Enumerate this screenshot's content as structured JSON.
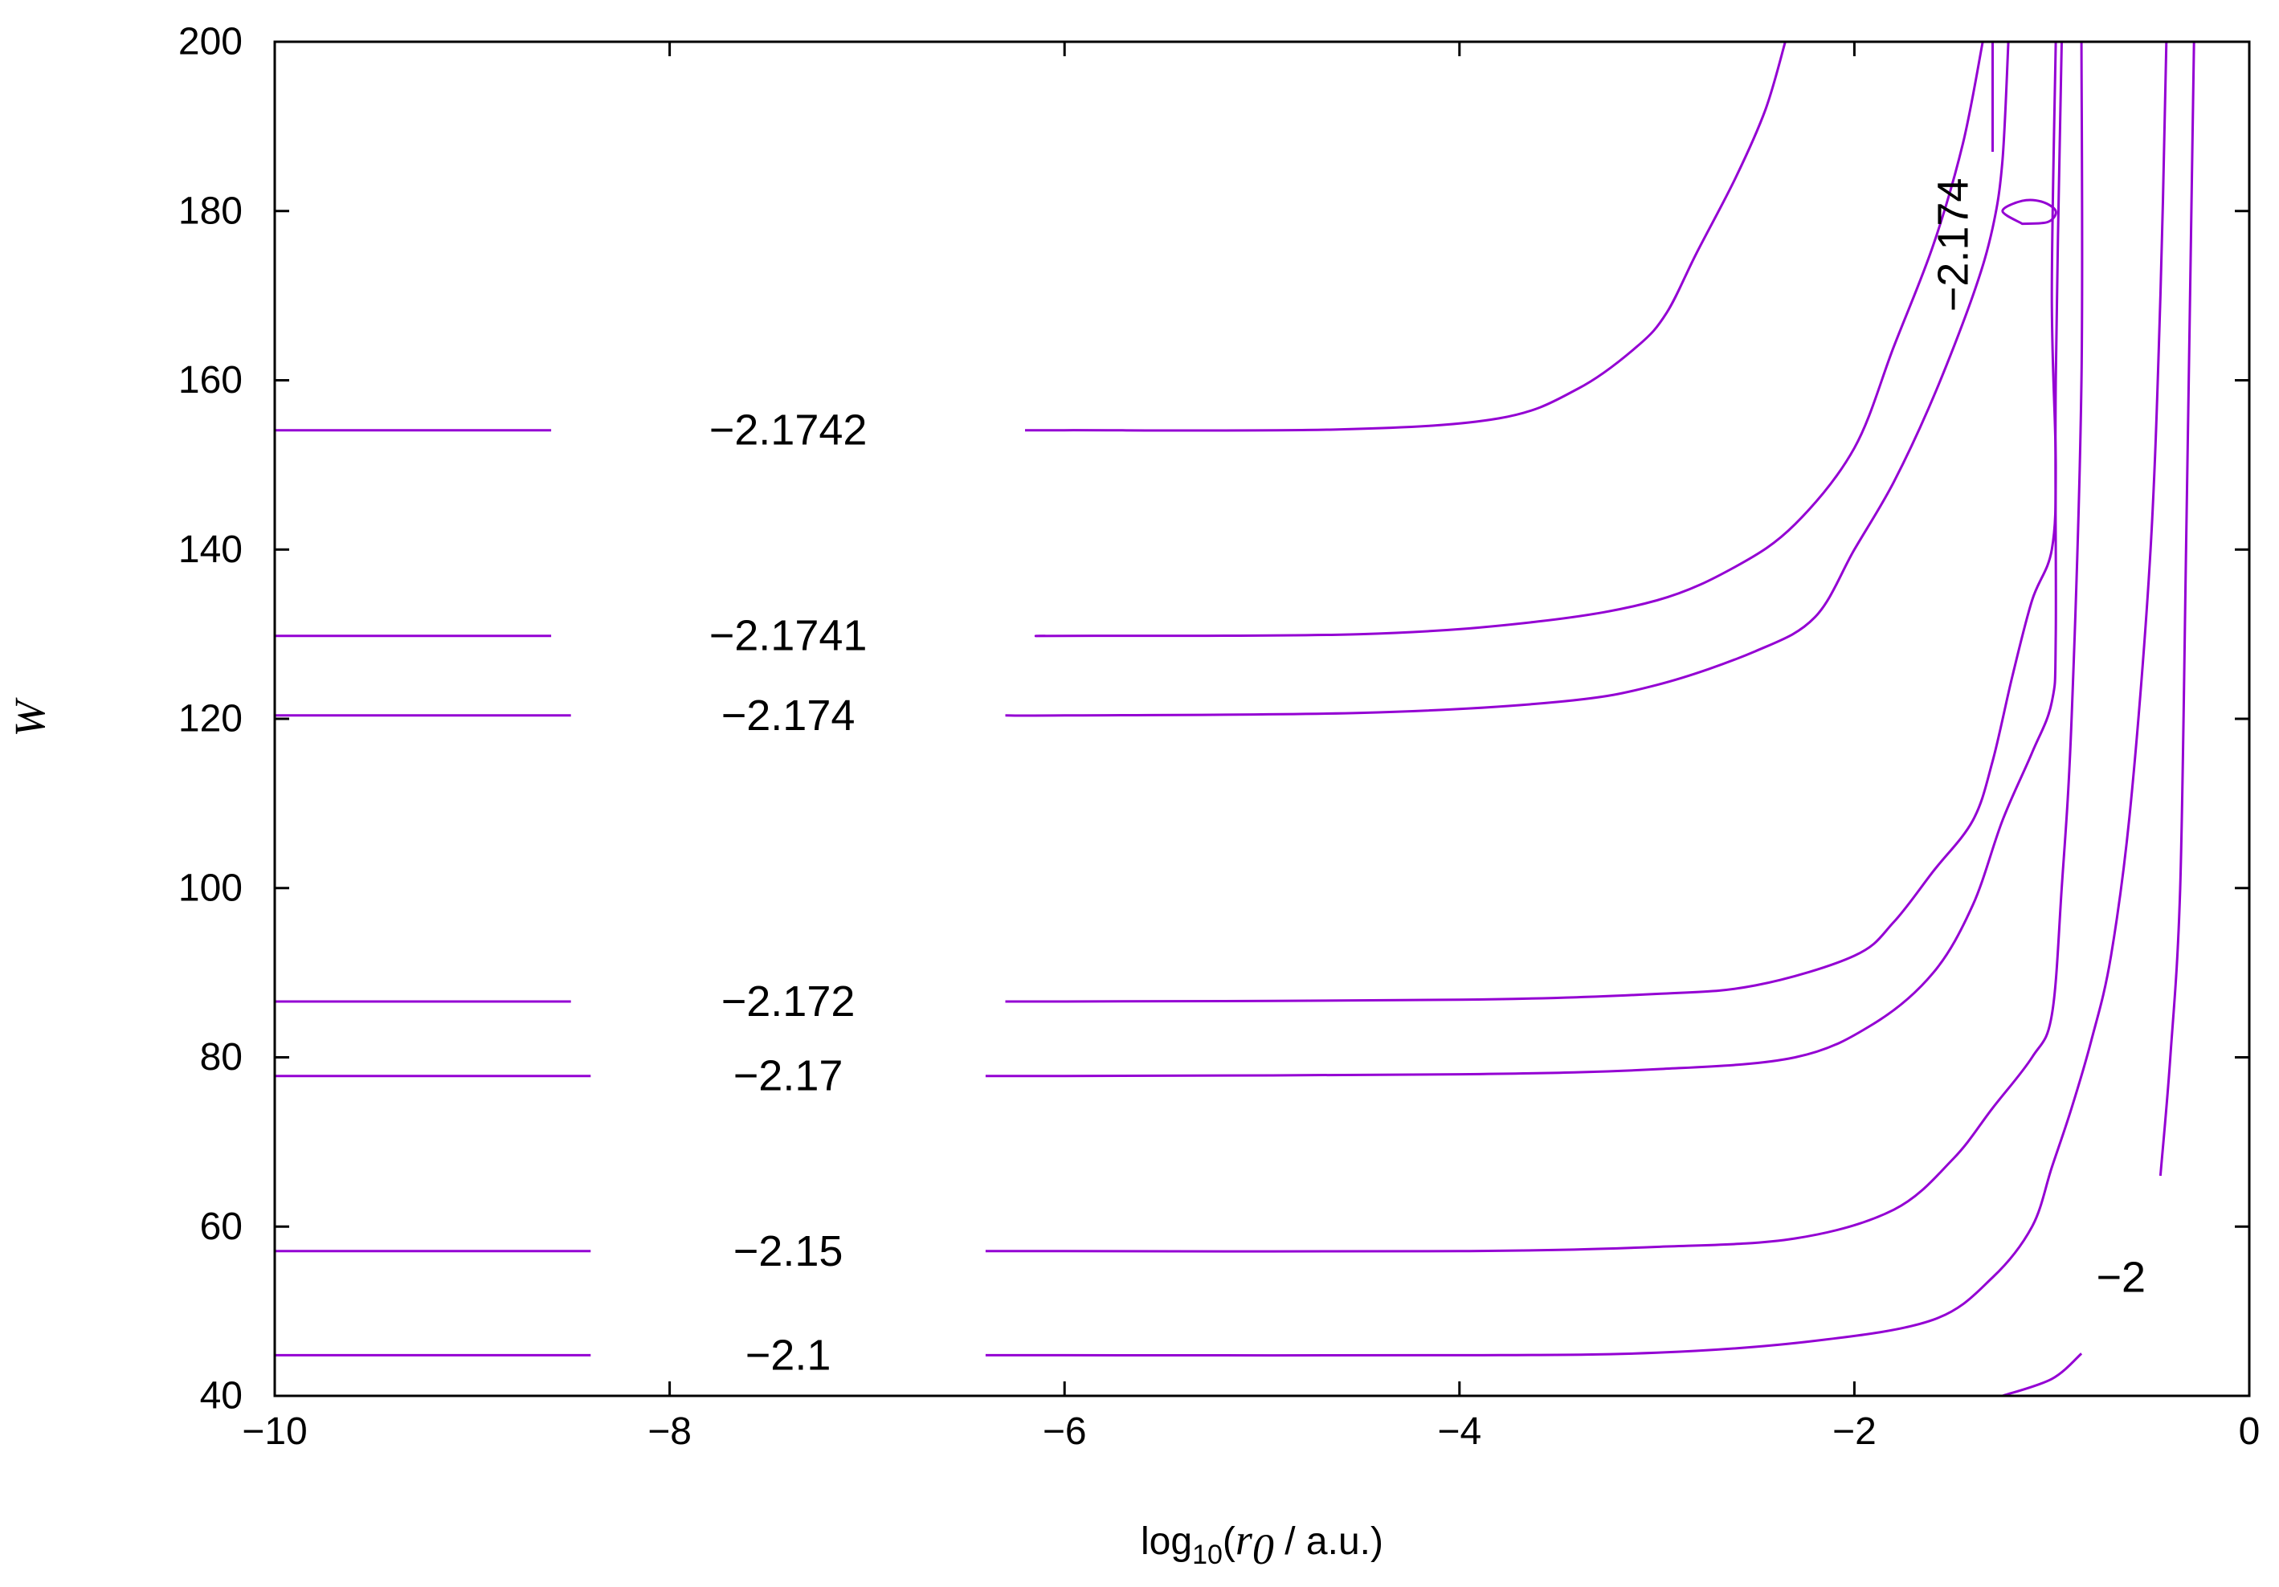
{
  "chart_data": {
    "type": "line",
    "title": "",
    "xlabel": {
      "prefix": "log",
      "sub": "10",
      "open": "(",
      "var": "r",
      "var_sub": "0",
      "rest": " / a.u.)"
    },
    "ylabel": "W",
    "xlim": [
      -10,
      0
    ],
    "ylim": [
      40,
      200
    ],
    "xticks": [
      -10,
      -8,
      -6,
      -4,
      -2,
      0
    ],
    "xtick_labels": [
      "−10",
      "−8",
      "−6",
      "−4",
      "−2",
      "0"
    ],
    "yticks": [
      40,
      60,
      80,
      100,
      120,
      140,
      160,
      180,
      200
    ],
    "ytick_labels": [
      "40",
      "60",
      "80",
      "100",
      "120",
      "140",
      "160",
      "180",
      "200"
    ],
    "line_color": "#9400d3",
    "contours": [
      {
        "label": "−2.1742",
        "label_at": [
          -7.4,
          154.1
        ],
        "label_rot": 0,
        "gap": [
          -8.6,
          -6.2
        ],
        "points": [
          [
            -10,
            154.1
          ],
          [
            -8,
            154.1
          ],
          [
            -6,
            154.1
          ],
          [
            -4.6,
            154.2
          ],
          [
            -3.8,
            155.5
          ],
          [
            -3.4,
            159
          ],
          [
            -3.1,
            164
          ],
          [
            -2.95,
            168
          ],
          [
            -2.8,
            175
          ],
          [
            -2.6,
            184
          ],
          [
            -2.45,
            192
          ],
          [
            -2.35,
            200
          ]
        ]
      },
      {
        "label": "−2.1741",
        "label_at": [
          -7.4,
          129.8
        ],
        "label_rot": 0,
        "gap": [
          -8.6,
          -6.1
        ],
        "points": [
          [
            -10,
            129.8
          ],
          [
            -8,
            129.8
          ],
          [
            -6,
            129.8
          ],
          [
            -4.5,
            130
          ],
          [
            -3.6,
            131.5
          ],
          [
            -3.0,
            134
          ],
          [
            -2.6,
            138
          ],
          [
            -2.3,
            143
          ],
          [
            -2.0,
            152
          ],
          [
            -1.8,
            164
          ],
          [
            -1.6,
            176
          ],
          [
            -1.45,
            188
          ],
          [
            -1.35,
            200
          ]
        ]
      },
      {
        "label": "−2.174",
        "label_at": [
          -7.4,
          120.4
        ],
        "label_rot": 0,
        "gap": [
          -8.5,
          -6.3
        ],
        "points": [
          [
            -10,
            120.4
          ],
          [
            -8,
            120.4
          ],
          [
            -6,
            120.4
          ],
          [
            -4.5,
            120.7
          ],
          [
            -3.5,
            122
          ],
          [
            -3.0,
            124
          ],
          [
            -2.5,
            128
          ],
          [
            -2.2,
            132
          ],
          [
            -2.0,
            140
          ],
          [
            -1.8,
            148
          ],
          [
            -1.6,
            158
          ],
          [
            -1.4,
            170
          ],
          [
            -1.3,
            178
          ],
          [
            -1.25,
            186
          ],
          [
            -1.22,
            200
          ]
        ]
      },
      {
        "label": "−2.174",
        "label_at": [
          -1.5,
          176
        ],
        "label_rot": -90,
        "gap": [
          187,
          168
        ],
        "points": [
          [
            -1.3,
            200
          ],
          [
            -1.3,
            168
          ]
        ]
      },
      {
        "label": "",
        "closed": true,
        "points": [
          [
            -1.15,
            178.5
          ],
          [
            -1.02,
            178.7
          ],
          [
            -0.98,
            180
          ],
          [
            -1.05,
            181.1
          ],
          [
            -1.15,
            181.2
          ],
          [
            -1.25,
            180
          ],
          [
            -1.15,
            178.5
          ]
        ]
      },
      {
        "label": "−2.172",
        "label_at": [
          -7.4,
          86.6
        ],
        "label_rot": 0,
        "gap": [
          -8.5,
          -6.3
        ],
        "points": [
          [
            -10,
            86.6
          ],
          [
            -8,
            86.6
          ],
          [
            -6,
            86.6
          ],
          [
            -4,
            86.8
          ],
          [
            -3.0,
            87.5
          ],
          [
            -2.5,
            88.5
          ],
          [
            -2.0,
            92
          ],
          [
            -1.8,
            96
          ],
          [
            -1.6,
            102
          ],
          [
            -1.4,
            108
          ],
          [
            -1.3,
            115
          ],
          [
            -1.2,
            125
          ],
          [
            -1.1,
            134
          ],
          [
            -1.0,
            140
          ],
          [
            -0.98,
            150
          ],
          [
            -1.0,
            170
          ],
          [
            -0.98,
            200
          ]
        ]
      },
      {
        "label": "−2.17",
        "label_at": [
          -7.4,
          77.8
        ],
        "label_rot": 0,
        "gap": [
          -8.4,
          -6.4
        ],
        "points": [
          [
            -10,
            77.8
          ],
          [
            -8,
            77.8
          ],
          [
            -6,
            77.8
          ],
          [
            -4,
            78
          ],
          [
            -3.0,
            78.6
          ],
          [
            -2.3,
            80
          ],
          [
            -1.9,
            84
          ],
          [
            -1.6,
            90
          ],
          [
            -1.4,
            98
          ],
          [
            -1.25,
            108
          ],
          [
            -1.1,
            116
          ],
          [
            -1.0,
            122
          ],
          [
            -0.98,
            130
          ],
          [
            -0.98,
            160
          ],
          [
            -0.95,
            200
          ]
        ]
      },
      {
        "label": "−2.15",
        "label_at": [
          -7.4,
          57.1
        ],
        "label_rot": 0,
        "gap": [
          -8.4,
          -6.4
        ],
        "points": [
          [
            -10,
            57.1
          ],
          [
            -8,
            57.1
          ],
          [
            -6,
            57.1
          ],
          [
            -4,
            57.1
          ],
          [
            -3.0,
            57.6
          ],
          [
            -2.3,
            58.6
          ],
          [
            -1.8,
            62
          ],
          [
            -1.5,
            68
          ],
          [
            -1.3,
            74
          ],
          [
            -1.1,
            80
          ],
          [
            -1.0,
            85
          ],
          [
            -0.95,
            100
          ],
          [
            -0.9,
            120
          ],
          [
            -0.85,
            160
          ],
          [
            -0.85,
            200
          ]
        ]
      },
      {
        "label": "−2.1",
        "label_at": [
          -7.4,
          44.8
        ],
        "label_rot": 0,
        "gap": [
          -8.4,
          -6.4
        ],
        "points": [
          [
            -10,
            44.8
          ],
          [
            -8,
            44.8
          ],
          [
            -6,
            44.8
          ],
          [
            -4,
            44.8
          ],
          [
            -3.0,
            45.1
          ],
          [
            -2.2,
            46.5
          ],
          [
            -1.6,
            49
          ],
          [
            -1.3,
            54
          ],
          [
            -1.1,
            60
          ],
          [
            -1.0,
            67
          ],
          [
            -0.9,
            74
          ],
          [
            -0.8,
            82
          ],
          [
            -0.7,
            92
          ],
          [
            -0.6,
            110
          ],
          [
            -0.5,
            140
          ],
          [
            -0.45,
            170
          ],
          [
            -0.42,
            200
          ]
        ]
      },
      {
        "label": "−2",
        "label_at": [
          -0.65,
          54
        ],
        "label_rot": 0,
        "gap": [
          -0.85,
          -0.45
        ],
        "points": [
          [
            -1.25,
            40
          ],
          [
            -1.0,
            42
          ],
          [
            -0.85,
            45
          ],
          [
            -0.72,
            50
          ],
          [
            -0.6,
            56
          ],
          [
            -0.5,
            62
          ],
          [
            -0.45,
            66
          ],
          [
            -0.4,
            80
          ],
          [
            -0.35,
            100
          ],
          [
            -0.32,
            140
          ],
          [
            -0.3,
            170
          ],
          [
            -0.28,
            200
          ]
        ]
      }
    ]
  }
}
